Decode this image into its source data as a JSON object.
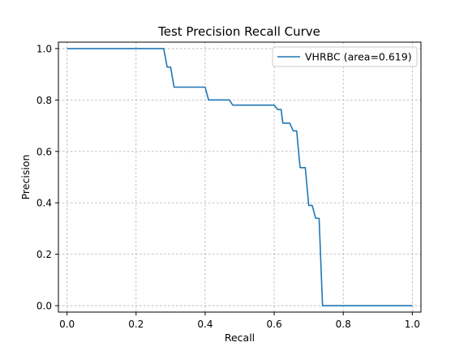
{
  "chart_data": {
    "type": "line",
    "title": "Test Precision Recall Curve",
    "xlabel": "Recall",
    "ylabel": "Precision",
    "xlim": [
      -0.025,
      1.025
    ],
    "ylim": [
      -0.025,
      1.025
    ],
    "xticks": [
      0.0,
      0.2,
      0.4,
      0.6,
      0.8,
      1.0
    ],
    "yticks": [
      0.0,
      0.2,
      0.4,
      0.6,
      0.8,
      1.0
    ],
    "xtick_labels": [
      "0.0",
      "0.2",
      "0.4",
      "0.6",
      "0.8",
      "1.0"
    ],
    "ytick_labels": [
      "0.0",
      "0.2",
      "0.4",
      "0.6",
      "0.8",
      "1.0"
    ],
    "grid": true,
    "legend_position": "top-right",
    "series": [
      {
        "name": "VHRBC (area=0.619)",
        "color": "#1f77b4",
        "x": [
          0.0,
          0.28,
          0.29,
          0.3,
          0.31,
          0.4,
          0.41,
          0.47,
          0.48,
          0.6,
          0.61,
          0.62,
          0.625,
          0.645,
          0.655,
          0.665,
          0.675,
          0.69,
          0.7,
          0.71,
          0.72,
          0.73,
          0.74,
          1.0
        ],
        "y": [
          1.0,
          1.0,
          0.928,
          0.928,
          0.85,
          0.85,
          0.8,
          0.8,
          0.78,
          0.78,
          0.763,
          0.763,
          0.71,
          0.71,
          0.68,
          0.68,
          0.537,
          0.537,
          0.39,
          0.39,
          0.34,
          0.34,
          0.0,
          0.0
        ]
      }
    ]
  }
}
